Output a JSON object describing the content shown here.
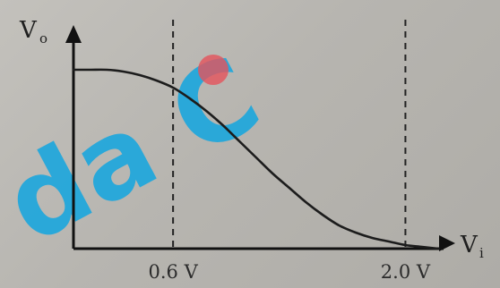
{
  "chart_data": {
    "type": "line",
    "title": "",
    "xlabel": "V",
    "xlabel_subscript": "i",
    "ylabel": "V",
    "ylabel_subscript": "o",
    "x_ticks": [
      "0.6 V",
      "2.0 V"
    ],
    "x_tick_values": [
      0.6,
      2.0
    ],
    "xlim": [
      0,
      2.3
    ],
    "ylim": [
      0,
      1.25
    ],
    "grid": false,
    "reference_lines": [
      0.6,
      2.0
    ],
    "series": [
      {
        "x": [
          0.0,
          0.1,
          0.2,
          0.3,
          0.4,
          0.5,
          0.6,
          0.7,
          0.8,
          0.9,
          1.0,
          1.1,
          1.2,
          1.3,
          1.4,
          1.5,
          1.6,
          1.7,
          1.8,
          1.9,
          2.0,
          2.1,
          2.2
        ],
        "y": [
          1.0,
          1.0,
          1.0,
          0.99,
          0.97,
          0.94,
          0.9,
          0.84,
          0.77,
          0.69,
          0.6,
          0.51,
          0.42,
          0.34,
          0.26,
          0.19,
          0.13,
          0.09,
          0.06,
          0.04,
          0.02,
          0.01,
          0.0
        ]
      }
    ],
    "colors": {
      "curve": "#1c1c1c",
      "axes": "#111111",
      "dashed": "#222222",
      "watermark": "#12a6e0",
      "dot": "#e5535b"
    }
  },
  "watermark": {
    "text": "da C"
  }
}
